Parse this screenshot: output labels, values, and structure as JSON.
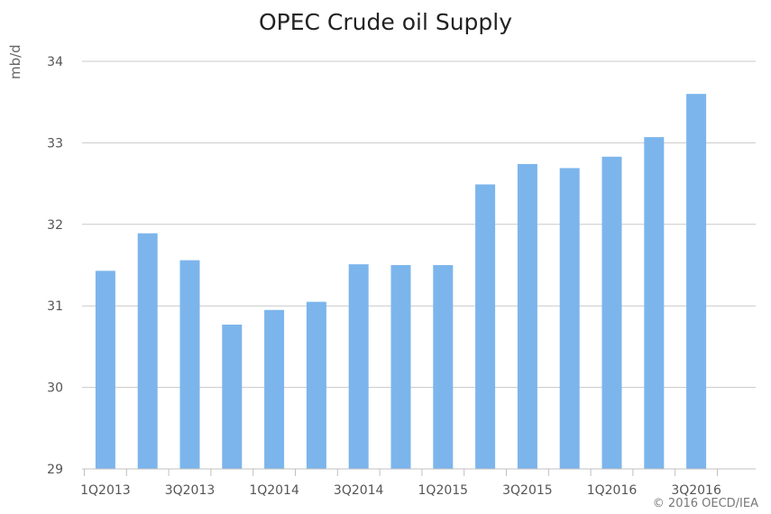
{
  "chart_data": {
    "type": "bar",
    "title": "OPEC Crude oil Supply",
    "ylabel": "mb/d",
    "xlabel": "",
    "ylim": [
      29,
      34
    ],
    "yticks": [
      29,
      30,
      31,
      32,
      33,
      34
    ],
    "categories": [
      "1Q2013",
      "2Q2013",
      "3Q2013",
      "4Q2013",
      "1Q2014",
      "2Q2014",
      "3Q2014",
      "4Q2014",
      "1Q2015",
      "2Q2015",
      "3Q2015",
      "4Q2015",
      "1Q2016",
      "2Q2016",
      "3Q2016"
    ],
    "x_tick_labels": [
      "1Q2013",
      "",
      "3Q2013",
      "",
      "1Q2014",
      "",
      "3Q2014",
      "",
      "1Q2015",
      "",
      "3Q2015",
      "",
      "1Q2016",
      "",
      "3Q2016"
    ],
    "values": [
      31.43,
      31.89,
      31.56,
      30.77,
      30.95,
      31.05,
      31.51,
      31.5,
      31.5,
      32.49,
      32.74,
      32.69,
      32.83,
      33.07,
      33.6
    ],
    "grid": true,
    "bar_color": "#7cb5ec",
    "grid_color": "#c8c8c8"
  },
  "credit": "© 2016 OECD/IEA"
}
